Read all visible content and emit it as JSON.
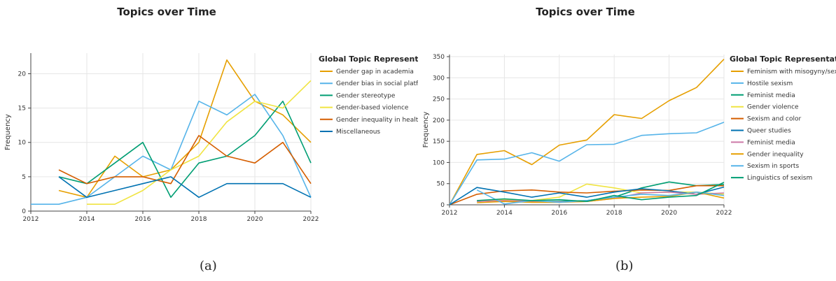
{
  "captions": [
    "(a)",
    "(b)"
  ],
  "chart_data": [
    {
      "type": "line",
      "title": "Topics over Time",
      "xlabel": "",
      "ylabel": "Frequency",
      "legend_title": "Global Topic Representation",
      "legend_position": "right",
      "grid": true,
      "xlim": [
        2012,
        2022
      ],
      "ylim": [
        0,
        23
      ],
      "xticks": [
        2012,
        2014,
        2016,
        2018,
        2020,
        2022
      ],
      "yticks": [
        0,
        5,
        10,
        15,
        20
      ],
      "series": [
        {
          "name": "Gender gap in academia",
          "color": "#E69F00",
          "x": [
            2013,
            2014,
            2015,
            2016,
            2017,
            2018,
            2019,
            2020,
            2021,
            2022
          ],
          "y": [
            3,
            2,
            8,
            5,
            6,
            10,
            22,
            16,
            14,
            10
          ]
        },
        {
          "name": "Gender bias in social platforms",
          "color": "#56B4E9",
          "x": [
            2012,
            2013,
            2014,
            2015,
            2016,
            2017,
            2018,
            2019,
            2020,
            2021,
            2022
          ],
          "y": [
            1,
            1,
            2,
            5,
            8,
            6,
            16,
            14,
            17,
            11,
            2
          ]
        },
        {
          "name": "Gender stereotype",
          "color": "#009E73",
          "x": [
            2013,
            2014,
            2015,
            2016,
            2017,
            2018,
            2019,
            2020,
            2021,
            2022
          ],
          "y": [
            5,
            4,
            7,
            10,
            2,
            7,
            8,
            11,
            16,
            7
          ]
        },
        {
          "name": "Gender-based violence",
          "color": "#F0E442",
          "x": [
            2014,
            2015,
            2016,
            2017,
            2018,
            2019,
            2020,
            2021,
            2022
          ],
          "y": [
            1,
            1,
            3,
            6,
            8,
            13,
            16,
            15,
            19
          ]
        },
        {
          "name": "Gender inequality in health",
          "color": "#D55E00",
          "x": [
            2013,
            2014,
            2015,
            2016,
            2017,
            2018,
            2019,
            2020,
            2021,
            2022
          ],
          "y": [
            6,
            4,
            5,
            5,
            4,
            11,
            8,
            7,
            10,
            4
          ]
        },
        {
          "name": "Miscellaneous",
          "color": "#0072B2",
          "x": [
            2013,
            2014,
            2015,
            2016,
            2017,
            2018,
            2019,
            2020,
            2021,
            2022
          ],
          "y": [
            5,
            2,
            3,
            4,
            5,
            2,
            4,
            4,
            4,
            2
          ]
        }
      ]
    },
    {
      "type": "line",
      "title": "Topics over Time",
      "xlabel": "",
      "ylabel": "Frequency",
      "legend_title": "Global Topic Representation",
      "legend_position": "right",
      "grid": true,
      "xlim": [
        2012,
        2022
      ],
      "ylim": [
        0,
        355
      ],
      "xticks": [
        2012,
        2014,
        2016,
        2018,
        2020,
        2022
      ],
      "yticks": [
        0,
        50,
        100,
        150,
        200,
        250,
        300,
        350
      ],
      "series": [
        {
          "name": "Feminism with misogyny/sexism",
          "color": "#E69F00",
          "x": [
            2012,
            2013,
            2014,
            2015,
            2016,
            2017,
            2018,
            2019,
            2020,
            2021,
            2022
          ],
          "y": [
            0,
            119,
            128,
            95,
            141,
            153,
            213,
            204,
            246,
            277,
            344
          ]
        },
        {
          "name": "Hostile sexism",
          "color": "#56B4E9",
          "x": [
            2012,
            2013,
            2014,
            2015,
            2016,
            2017,
            2018,
            2019,
            2020,
            2021,
            2022
          ],
          "y": [
            0,
            106,
            108,
            123,
            103,
            142,
            143,
            164,
            168,
            170,
            195
          ]
        },
        {
          "name": "Feminist media",
          "color": "#009E73",
          "x": [
            2013,
            2014,
            2015,
            2016,
            2017,
            2018,
            2019,
            2020,
            2021,
            2022
          ],
          "y": [
            8,
            12,
            8,
            8,
            10,
            18,
            40,
            54,
            45,
            48
          ]
        },
        {
          "name": "Gender violence",
          "color": "#F0E442",
          "x": [
            2013,
            2014,
            2015,
            2016,
            2017,
            2018,
            2019,
            2020,
            2021,
            2022
          ],
          "y": [
            10,
            12,
            10,
            18,
            49,
            40,
            28,
            30,
            30,
            25
          ]
        },
        {
          "name": "Sexism and color",
          "color": "#D55E00",
          "x": [
            2012,
            2013,
            2014,
            2015,
            2016,
            2017,
            2018,
            2019,
            2020,
            2021,
            2022
          ],
          "y": [
            0,
            25,
            33,
            35,
            30,
            28,
            32,
            35,
            34,
            45,
            45
          ]
        },
        {
          "name": "Queer studies",
          "color": "#0072B2",
          "x": [
            2012,
            2013,
            2014,
            2015,
            2016,
            2017,
            2018,
            2019,
            2020,
            2021,
            2022
          ],
          "y": [
            0,
            41,
            30,
            18,
            28,
            18,
            30,
            38,
            33,
            25,
            42
          ]
        },
        {
          "name": "Feminist media",
          "color": "#CC79A7",
          "x": [
            2013,
            2014,
            2015,
            2016,
            2017,
            2018,
            2019,
            2020,
            2021,
            2022
          ],
          "y": [
            8,
            10,
            8,
            7,
            8,
            15,
            28,
            30,
            25,
            28
          ]
        },
        {
          "name": "Gender inequality",
          "color": "#E69F00",
          "x": [
            2013,
            2014,
            2015,
            2016,
            2017,
            2018,
            2019,
            2020,
            2021,
            2022
          ],
          "y": [
            5,
            8,
            6,
            6,
            8,
            15,
            18,
            20,
            30,
            16
          ]
        },
        {
          "name": "Sexism in sports",
          "color": "#56B4E9",
          "x": [
            2013,
            2014,
            2015,
            2016,
            2017,
            2018,
            2019,
            2020,
            2021,
            2022
          ],
          "y": [
            35,
            2,
            10,
            6,
            10,
            18,
            25,
            22,
            30,
            22
          ]
        },
        {
          "name": "Linguistics of sexism",
          "color": "#009E73",
          "x": [
            2013,
            2014,
            2015,
            2016,
            2017,
            2018,
            2019,
            2020,
            2021,
            2022
          ],
          "y": [
            10,
            14,
            10,
            12,
            8,
            22,
            12,
            18,
            22,
            53
          ]
        }
      ]
    }
  ]
}
